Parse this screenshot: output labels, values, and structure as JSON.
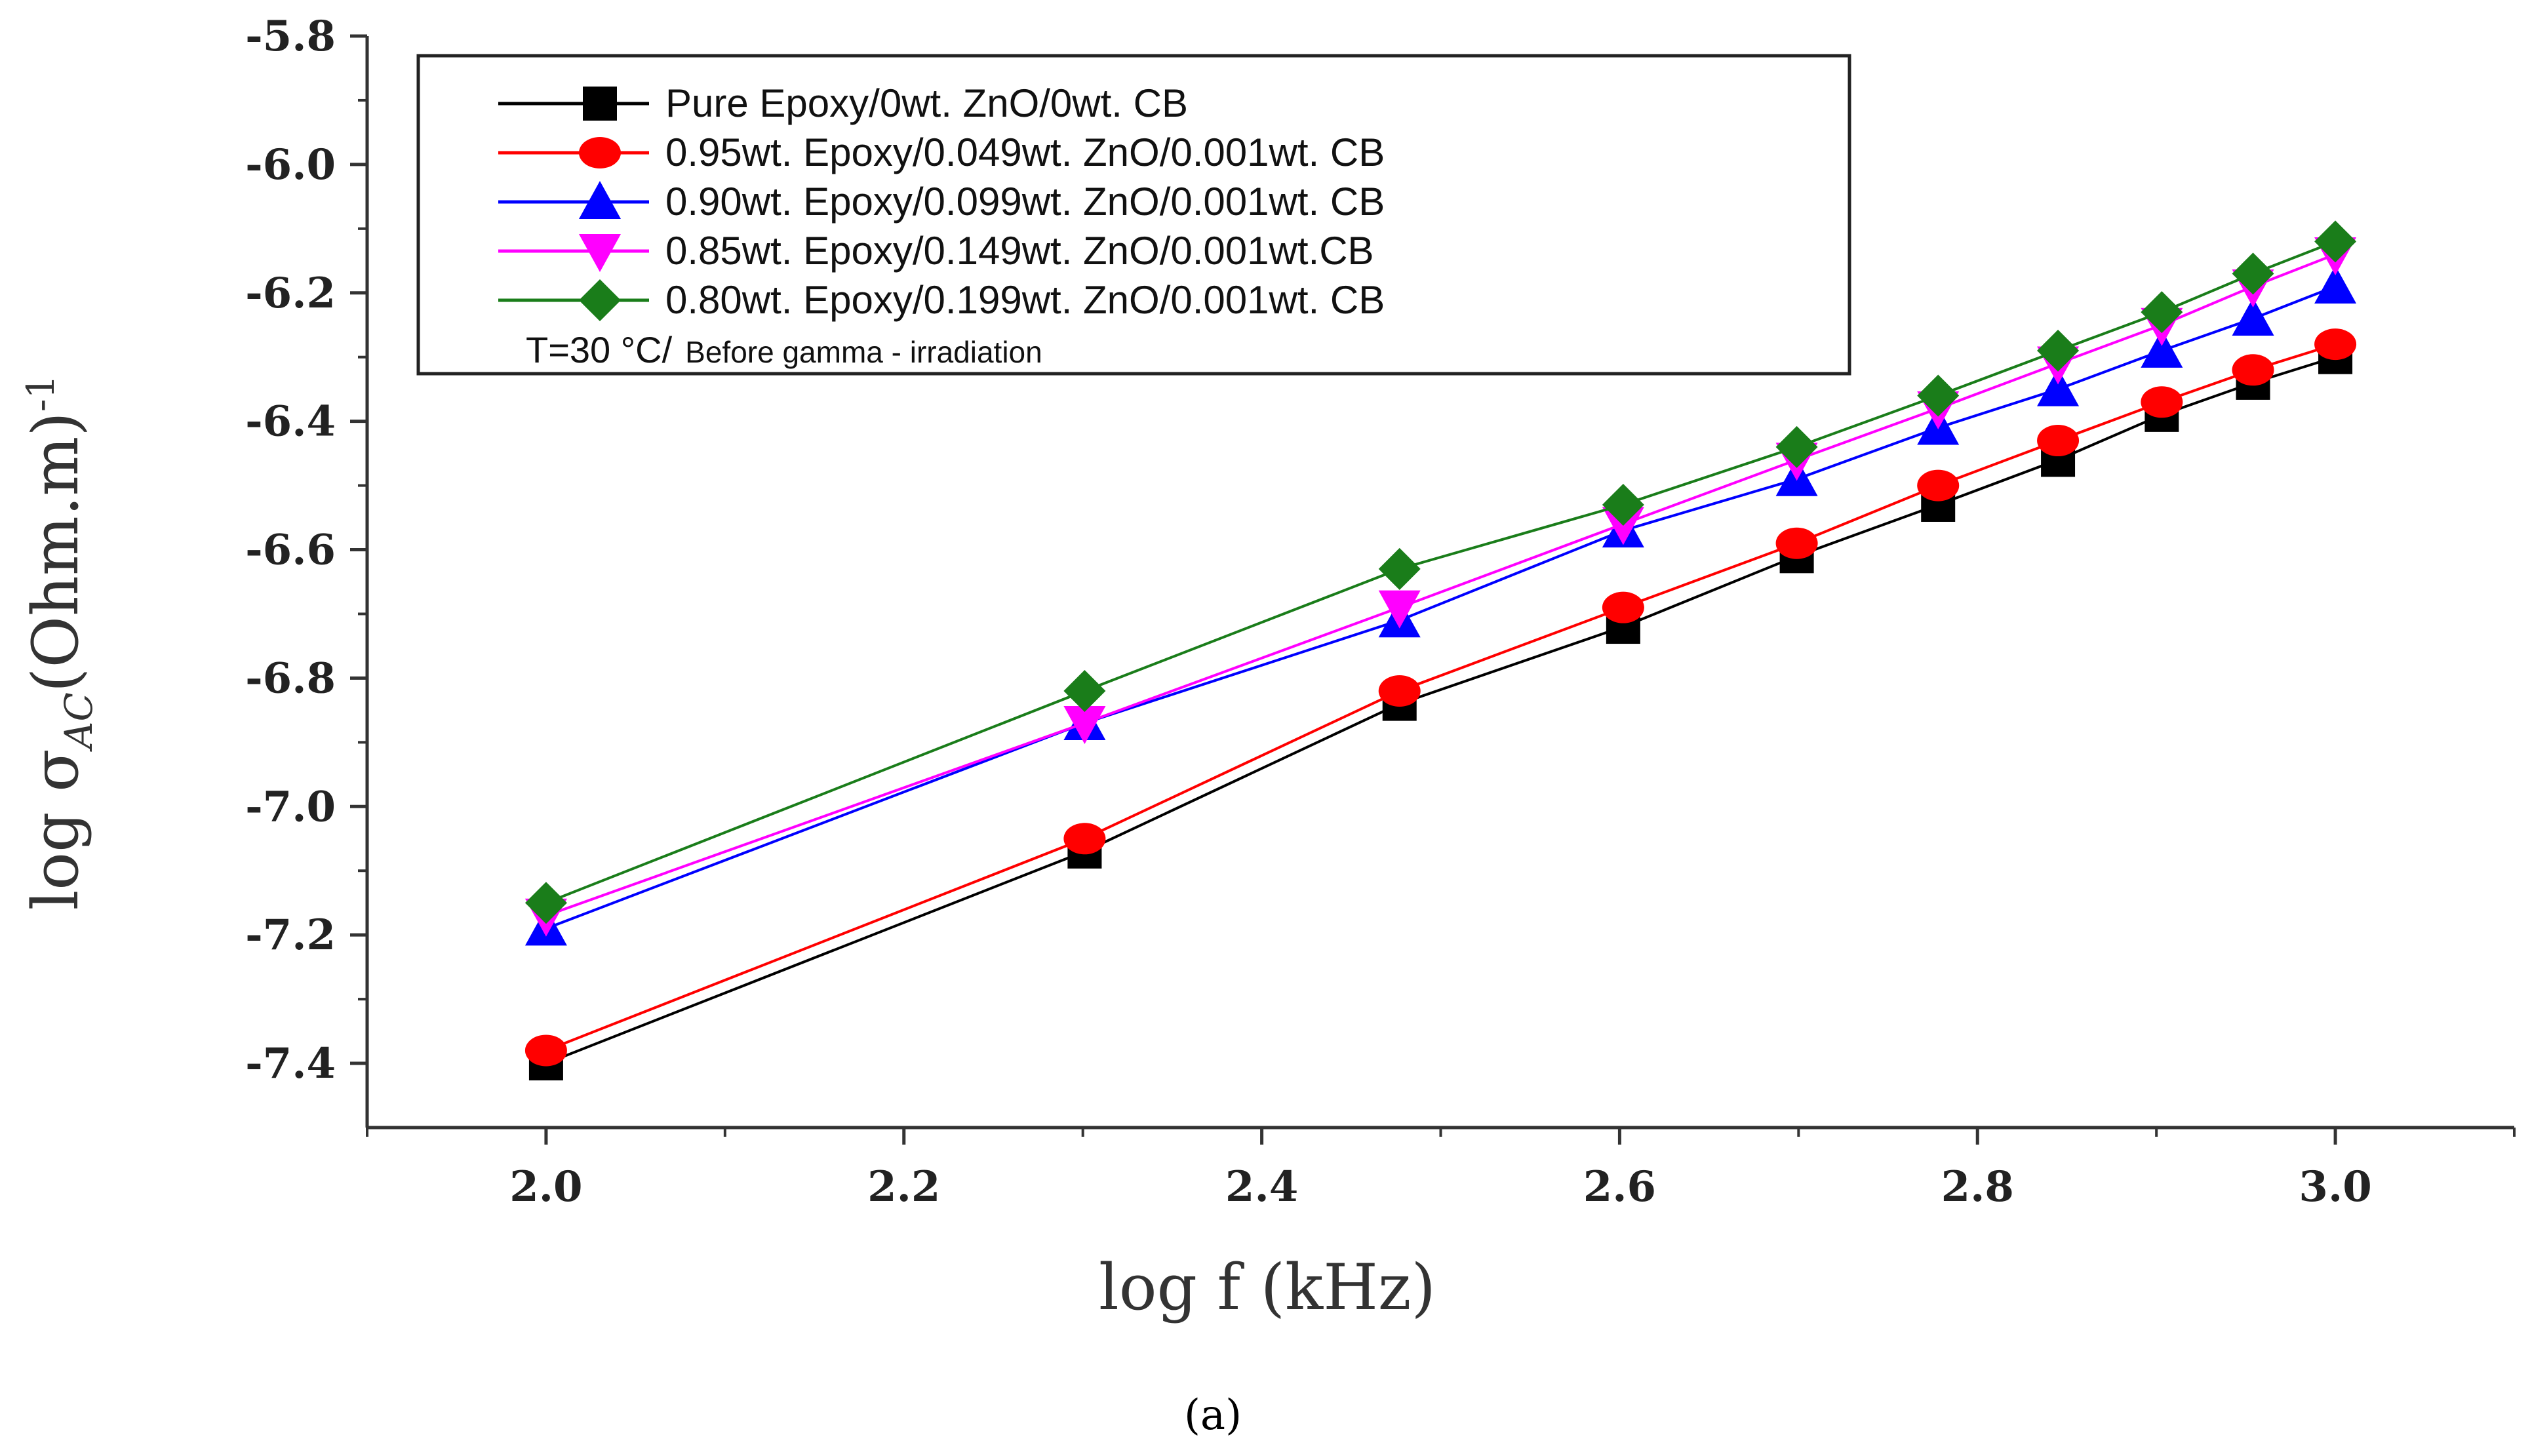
{
  "chart_data": {
    "type": "line",
    "title": "",
    "xlabel": "log f (kHz)",
    "ylabel_main": "log σ",
    "ylabel_subscript": "AC",
    "ylabel_unit": "(Ohm.m)",
    "ylabel_superscript": "-1",
    "xlim": [
      1.9,
      3.1
    ],
    "ylim": [
      -7.5,
      -5.8
    ],
    "x_ticks": [
      2.0,
      2.2,
      2.4,
      2.6,
      2.8,
      3.0
    ],
    "x_tick_labels": [
      "2.0",
      "2.2",
      "2.4",
      "2.6",
      "2.8",
      "3.0"
    ],
    "y_ticks": [
      -5.8,
      -6.0,
      -6.2,
      -6.4,
      -6.6,
      -6.8,
      -7.0,
      -7.2,
      -7.4
    ],
    "y_tick_labels": [
      "-5.8",
      "-6.0",
      "-6.2",
      "-6.4",
      "-6.6",
      "-6.8",
      "-7.0",
      "-7.2",
      "-7.4"
    ],
    "x": [
      2.0,
      2.301,
      2.477,
      2.602,
      2.699,
      2.778,
      2.845,
      2.903,
      2.954,
      3.0
    ],
    "series": [
      {
        "name": "Pure Epoxy/0wt. ZnO/0wt. CB",
        "color": "#000000",
        "marker": "square",
        "values": [
          -7.4,
          -7.07,
          -6.84,
          -6.72,
          -6.61,
          -6.53,
          -6.46,
          -6.39,
          -6.34,
          -6.3
        ]
      },
      {
        "name": "0.95wt. Epoxy/0.049wt. ZnO/0.001wt. CB",
        "color": "#ff0000",
        "marker": "circle",
        "values": [
          -7.38,
          -7.05,
          -6.82,
          -6.69,
          -6.59,
          -6.5,
          -6.43,
          -6.37,
          -6.32,
          -6.28
        ]
      },
      {
        "name": "0.90wt. Epoxy/0.099wt. ZnO/0.001wt. CB",
        "color": "#0000ff",
        "marker": "triangle-up",
        "values": [
          -7.19,
          -6.87,
          -6.71,
          -6.57,
          -6.49,
          -6.41,
          -6.35,
          -6.29,
          -6.24,
          -6.19
        ]
      },
      {
        "name": "0.85wt. Epoxy/0.149wt. ZnO/0.001wt.CB",
        "color": "#ff00ff",
        "marker": "triangle-down",
        "values": [
          -7.17,
          -6.87,
          -6.69,
          -6.56,
          -6.46,
          -6.38,
          -6.31,
          -6.25,
          -6.19,
          -6.14
        ]
      },
      {
        "name": "0.80wt. Epoxy/0.199wt. ZnO/0.001wt. CB",
        "color": "#1a7d1a",
        "marker": "diamond",
        "values": [
          -7.15,
          -6.82,
          -6.63,
          -6.53,
          -6.44,
          -6.36,
          -6.29,
          -6.23,
          -6.17,
          -6.12
        ]
      }
    ],
    "legend_note_main": "T=30 °C/",
    "legend_note_small": "Before gamma - irradiation",
    "legend_position": "top-left",
    "grid": false
  },
  "panel_label": "(a)"
}
